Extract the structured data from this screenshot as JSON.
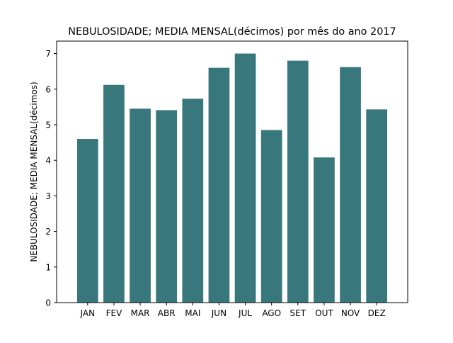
{
  "chart_data": {
    "type": "bar",
    "title": "NEBULOSIDADE; MEDIA MENSAL(décimos) por mês do ano 2017",
    "xlabel": "",
    "ylabel": "NEBULOSIDADE; MEDIA MENSAL(décimos)",
    "categories": [
      "JAN",
      "FEV",
      "MAR",
      "ABR",
      "MAI",
      "JUN",
      "JUL",
      "AGO",
      "SET",
      "OUT",
      "NOV",
      "DEZ"
    ],
    "values": [
      4.6,
      6.12,
      5.45,
      5.41,
      5.73,
      6.6,
      7.0,
      4.85,
      6.8,
      4.08,
      6.62,
      5.43
    ],
    "ylim": [
      0,
      7.35
    ],
    "yticks": [
      0,
      1,
      2,
      3,
      4,
      5,
      6,
      7
    ],
    "grid": false,
    "bar_color": "#38777b"
  }
}
